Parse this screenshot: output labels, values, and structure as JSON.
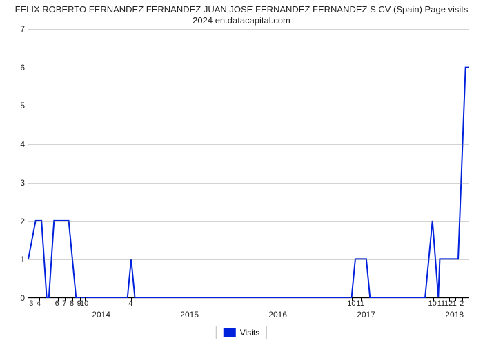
{
  "chart": {
    "type": "line",
    "title_line1": "FELIX ROBERTO FERNANDEZ FERNANDEZ JUAN JOSE FERNANDEZ FERNANDEZ S CV (Spain) Page visits",
    "title_line2": "2024 en.datacapital.com",
    "title_fontsize": 13,
    "background_color": "#ffffff",
    "line_color": "#0022dd",
    "line_width": 2,
    "grid_color": "#808080",
    "axis_color": "#000000",
    "label_color": "#222222",
    "y": {
      "min": 0,
      "max": 7,
      "ticks": [
        0,
        1,
        2,
        3,
        4,
        5,
        6,
        7
      ],
      "label_fontsize": 12
    },
    "x": {
      "domain_min": 0,
      "domain_max": 60,
      "minor_labels": [
        {
          "x": 0.5,
          "text": "3"
        },
        {
          "x": 1.5,
          "text": "4"
        },
        {
          "x": 4.0,
          "text": "6"
        },
        {
          "x": 5.0,
          "text": "7"
        },
        {
          "x": 6.0,
          "text": "8"
        },
        {
          "x": 7.0,
          "text": "9"
        },
        {
          "x": 7.7,
          "text": "10"
        },
        {
          "x": 14,
          "text": "4"
        },
        {
          "x": 44,
          "text": "10"
        },
        {
          "x": 45.2,
          "text": "11"
        },
        {
          "x": 55,
          "text": "10"
        },
        {
          "x": 56.2,
          "text": "11"
        },
        {
          "x": 57.2,
          "text": "12"
        },
        {
          "x": 58,
          "text": "1"
        },
        {
          "x": 59,
          "text": "2"
        }
      ],
      "major_labels": [
        {
          "x": 10,
          "text": "2014"
        },
        {
          "x": 22,
          "text": "2015"
        },
        {
          "x": 34,
          "text": "2016"
        },
        {
          "x": 46,
          "text": "2017"
        },
        {
          "x": 58,
          "text": "2018"
        }
      ]
    },
    "series": {
      "name": "Visits",
      "points": [
        [
          0,
          1
        ],
        [
          1,
          2
        ],
        [
          1.8,
          2
        ],
        [
          2.5,
          0
        ],
        [
          2.8,
          0
        ],
        [
          3.5,
          2
        ],
        [
          5.5,
          2
        ],
        [
          6.5,
          0
        ],
        [
          13.5,
          0
        ],
        [
          14,
          1
        ],
        [
          14.5,
          0
        ],
        [
          44,
          0
        ],
        [
          44.5,
          1
        ],
        [
          46,
          1
        ],
        [
          46.5,
          0
        ],
        [
          54,
          0
        ],
        [
          55,
          2
        ],
        [
          55.8,
          0
        ],
        [
          56,
          1
        ],
        [
          58,
          1
        ],
        [
          58.5,
          1
        ],
        [
          59.5,
          6
        ],
        [
          60,
          6
        ]
      ]
    },
    "legend": {
      "label": "Visits",
      "swatch_color": "#0022dd"
    }
  }
}
